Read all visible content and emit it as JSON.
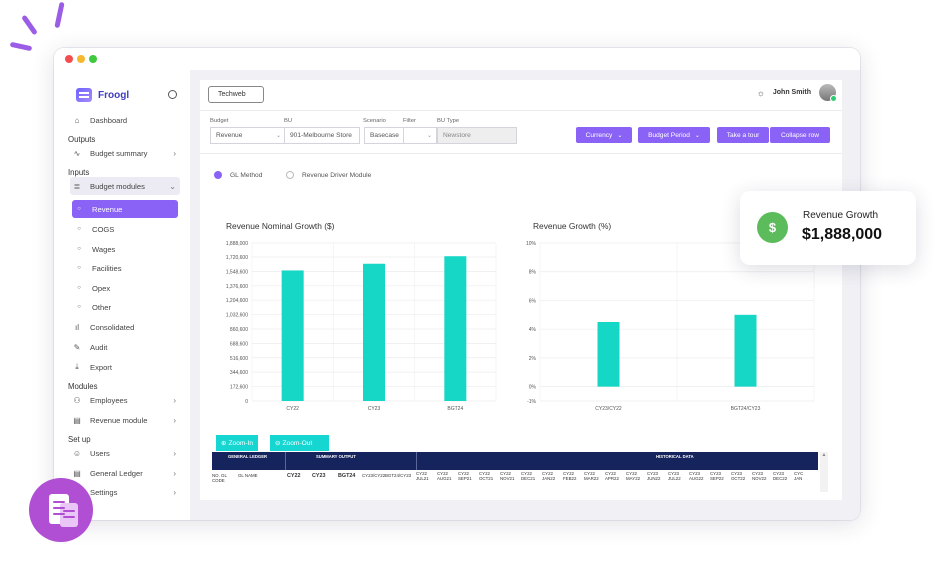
{
  "app": {
    "brand": "Froogl"
  },
  "sidebar": {
    "dashboard": "Dashboard",
    "outputs_title": "Outputs",
    "budget_summary": "Budget summary",
    "inputs_title": "Inputs",
    "budget_modules": "Budget modules",
    "sub_items": [
      "Revenue",
      "COGS",
      "Wages",
      "Facilities",
      "Opex",
      "Other"
    ],
    "consolidated": "Consolidated",
    "audit": "Audit",
    "export": "Export",
    "modules_title": "Modules",
    "employees": "Employees",
    "revenue_module": "Revenue module",
    "setup_title": "Set up",
    "users": "Users",
    "general_ledger": "General Ledger",
    "settings": "Settings"
  },
  "header": {
    "company": "Techweb",
    "user_name": "John Smith"
  },
  "filters": {
    "budget_label": "Budget",
    "budget_value": "Revenue",
    "bu_label": "BU",
    "bu_value": "901-Melbourne Store",
    "scenario_label": "Scenario",
    "scenario_value": "Basecase",
    "filter_label": "Filter",
    "filter_value": "",
    "bu_type_label": "BU Type",
    "bu_type_value": "Newstore"
  },
  "actions": {
    "currency": "Currency",
    "budget_period": "Budget Period",
    "take_tour": "Take a tour",
    "collapse_row": "Collapse row"
  },
  "method": {
    "gl_method": "GL Method",
    "revenue_driver": "Revenue Driver Module"
  },
  "chart_data": [
    {
      "type": "bar",
      "title": "Revenue Nominal Growth ($)",
      "categories": [
        "CY22",
        "CY23",
        "BGT24"
      ],
      "values": [
        1560000,
        1640000,
        1730000
      ],
      "ylim": [
        0,
        1888000
      ],
      "yticks": [
        0,
        172600,
        344600,
        516600,
        688600,
        860600,
        1032600,
        1204600,
        1376600,
        1548600,
        1720600,
        1888000
      ],
      "ytick_labels": [
        "0",
        "172,600",
        "344,600",
        "516,600",
        "688,600",
        "860,600",
        "1,032,600",
        "1,204,600",
        "1,376,600",
        "1,548,600",
        "1,720,600",
        "1,888,000"
      ],
      "color": "#16d6c5"
    },
    {
      "type": "bar",
      "title": "Revenue Growth (%)",
      "categories": [
        "CY23/CY22",
        "BGT24/CY23"
      ],
      "values": [
        4.5,
        5.0
      ],
      "ylim": [
        -1,
        10
      ],
      "yticks": [
        -1,
        0,
        2,
        4,
        6,
        8,
        10
      ],
      "ytick_labels": [
        "-1%",
        "0%",
        "2%",
        "4%",
        "6%",
        "8%",
        "10%"
      ],
      "color": "#16d6c5"
    }
  ],
  "zoom": {
    "zoom_in": "Zoom-In",
    "zoom_out": "Zoom-Out"
  },
  "grid": {
    "general_ledger": "GENERAL LEDGER",
    "summary_output": "SUMMARY OUTPUT",
    "historical_data": "HISTORICAL DATA",
    "col_no": "NO. GL CODE",
    "col_name": "GL NAME",
    "summary_cols": [
      "CY22",
      "CY23",
      "BGT24",
      "CY23/CY22",
      "BGT24/CY23"
    ],
    "historical_cols": [
      "CY22 JUL21",
      "CY22 AUG21",
      "CY22 SEP21",
      "CY22 OCT21",
      "CY22 NOV21",
      "CY22 DEC21",
      "CY22 JAN22",
      "CY22 FEB22",
      "CY22 MAR22",
      "CY22 APR22",
      "CY22 MAY22",
      "CY23 JUN22",
      "CY23 JUL22",
      "CY23 AUG22",
      "CY23 SEP22",
      "CY23 OCT22",
      "CY23 NOV22",
      "CY23 DEC22",
      "CYC JAN"
    ]
  },
  "card": {
    "label": "Revenue Growth",
    "value": "$1,888,000"
  }
}
